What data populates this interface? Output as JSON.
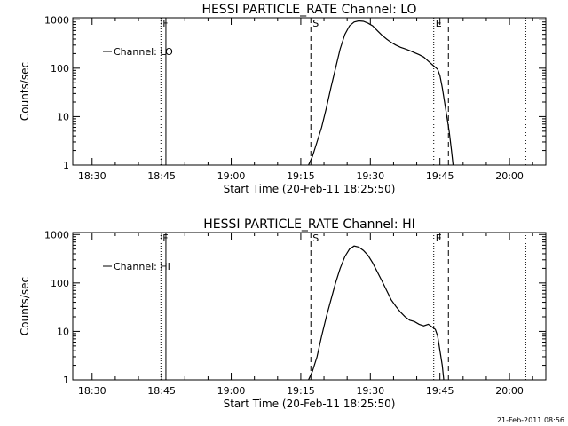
{
  "footer_timestamp": "21-Feb-2011 08:56",
  "chart_data": [
    {
      "type": "line",
      "title": "HESSI PARTICLE_RATE Channel: LO",
      "xlabel": "Start Time (20-Feb-11 18:25:50)",
      "ylabel": "Counts/sec",
      "y_scale": "log",
      "ylim": [
        1,
        1100
      ],
      "xlim": [
        "18:25:50",
        "20:07:50"
      ],
      "x_ticks": [
        "18:30",
        "18:45",
        "19:00",
        "19:15",
        "19:30",
        "19:45",
        "20:00"
      ],
      "y_ticks": [
        "1",
        "10",
        "100",
        "1000"
      ],
      "legend": {
        "label": "Channel: LO",
        "placement": "top-left"
      },
      "markers": [
        {
          "label": "F",
          "time": "18:44:50",
          "style": "dotted"
        },
        {
          "label": "",
          "time": "18:45:55",
          "style": "solid"
        },
        {
          "label": "S",
          "time": "19:17:10",
          "style": "dashed"
        },
        {
          "label": "E",
          "time": "19:43:40",
          "style": "dotted"
        },
        {
          "label": "",
          "time": "19:46:50",
          "style": "dashed"
        },
        {
          "label": "",
          "time": "20:03:30",
          "style": "dotted"
        }
      ],
      "series": [
        {
          "name": "Channel: LO",
          "points": [
            [
              "19:16:40",
              1
            ],
            [
              "19:17:30",
              1.5
            ],
            [
              "19:18:30",
              3
            ],
            [
              "19:19:30",
              6
            ],
            [
              "19:20:30",
              15
            ],
            [
              "19:21:30",
              40
            ],
            [
              "19:22:30",
              100
            ],
            [
              "19:23:30",
              250
            ],
            [
              "19:24:30",
              500
            ],
            [
              "19:25:30",
              750
            ],
            [
              "19:26:30",
              900
            ],
            [
              "19:27:30",
              950
            ],
            [
              "19:28:30",
              930
            ],
            [
              "19:29:30",
              850
            ],
            [
              "19:30:30",
              750
            ],
            [
              "19:31:30",
              600
            ],
            [
              "19:32:30",
              480
            ],
            [
              "19:33:30",
              400
            ],
            [
              "19:34:30",
              340
            ],
            [
              "19:35:30",
              300
            ],
            [
              "19:36:30",
              270
            ],
            [
              "19:37:30",
              250
            ],
            [
              "19:38:30",
              230
            ],
            [
              "19:39:30",
              210
            ],
            [
              "19:40:30",
              190
            ],
            [
              "19:41:30",
              170
            ],
            [
              "19:42:30",
              140
            ],
            [
              "19:43:30",
              115
            ],
            [
              "19:44:30",
              95
            ],
            [
              "19:45:00",
              70
            ],
            [
              "19:45:30",
              40
            ],
            [
              "19:46:00",
              20
            ],
            [
              "19:46:30",
              10
            ],
            [
              "19:47:00",
              5
            ],
            [
              "19:47:30",
              2
            ],
            [
              "19:47:50",
              1
            ]
          ]
        }
      ]
    },
    {
      "type": "line",
      "title": "HESSI PARTICLE_RATE Channel: HI",
      "xlabel": "Start Time (20-Feb-11 18:25:50)",
      "ylabel": "Counts/sec",
      "y_scale": "log",
      "ylim": [
        1,
        1100
      ],
      "xlim": [
        "18:25:50",
        "20:07:50"
      ],
      "x_ticks": [
        "18:30",
        "18:45",
        "19:00",
        "19:15",
        "19:30",
        "19:45",
        "20:00"
      ],
      "y_ticks": [
        "1",
        "10",
        "100",
        "1000"
      ],
      "legend": {
        "label": "Channel: HI",
        "placement": "top-left"
      },
      "markers": [
        {
          "label": "F",
          "time": "18:44:50",
          "style": "dotted"
        },
        {
          "label": "",
          "time": "18:45:55",
          "style": "solid"
        },
        {
          "label": "S",
          "time": "19:17:10",
          "style": "dashed"
        },
        {
          "label": "E",
          "time": "19:43:40",
          "style": "dotted"
        },
        {
          "label": "",
          "time": "19:46:50",
          "style": "dashed"
        },
        {
          "label": "",
          "time": "20:03:30",
          "style": "dotted"
        }
      ],
      "series": [
        {
          "name": "Channel: HI",
          "points": [
            [
              "19:16:40",
              1
            ],
            [
              "19:17:30",
              1.5
            ],
            [
              "19:18:30",
              3
            ],
            [
              "19:19:30",
              8
            ],
            [
              "19:20:30",
              20
            ],
            [
              "19:21:30",
              45
            ],
            [
              "19:22:30",
              100
            ],
            [
              "19:23:30",
              200
            ],
            [
              "19:24:30",
              350
            ],
            [
              "19:25:30",
              500
            ],
            [
              "19:26:30",
              580
            ],
            [
              "19:27:30",
              550
            ],
            [
              "19:28:30",
              470
            ],
            [
              "19:29:30",
              370
            ],
            [
              "19:30:30",
              260
            ],
            [
              "19:31:30",
              170
            ],
            [
              "19:32:30",
              110
            ],
            [
              "19:33:30",
              70
            ],
            [
              "19:34:30",
              45
            ],
            [
              "19:35:30",
              33
            ],
            [
              "19:36:30",
              25
            ],
            [
              "19:37:30",
              20
            ],
            [
              "19:38:30",
              17
            ],
            [
              "19:39:30",
              16
            ],
            [
              "19:40:30",
              14
            ],
            [
              "19:41:30",
              13
            ],
            [
              "19:42:30",
              14
            ],
            [
              "19:43:30",
              12
            ],
            [
              "19:44:00",
              11
            ],
            [
              "19:44:30",
              8
            ],
            [
              "19:45:00",
              4
            ],
            [
              "19:45:30",
              2
            ],
            [
              "19:45:50",
              1
            ]
          ]
        }
      ]
    }
  ]
}
